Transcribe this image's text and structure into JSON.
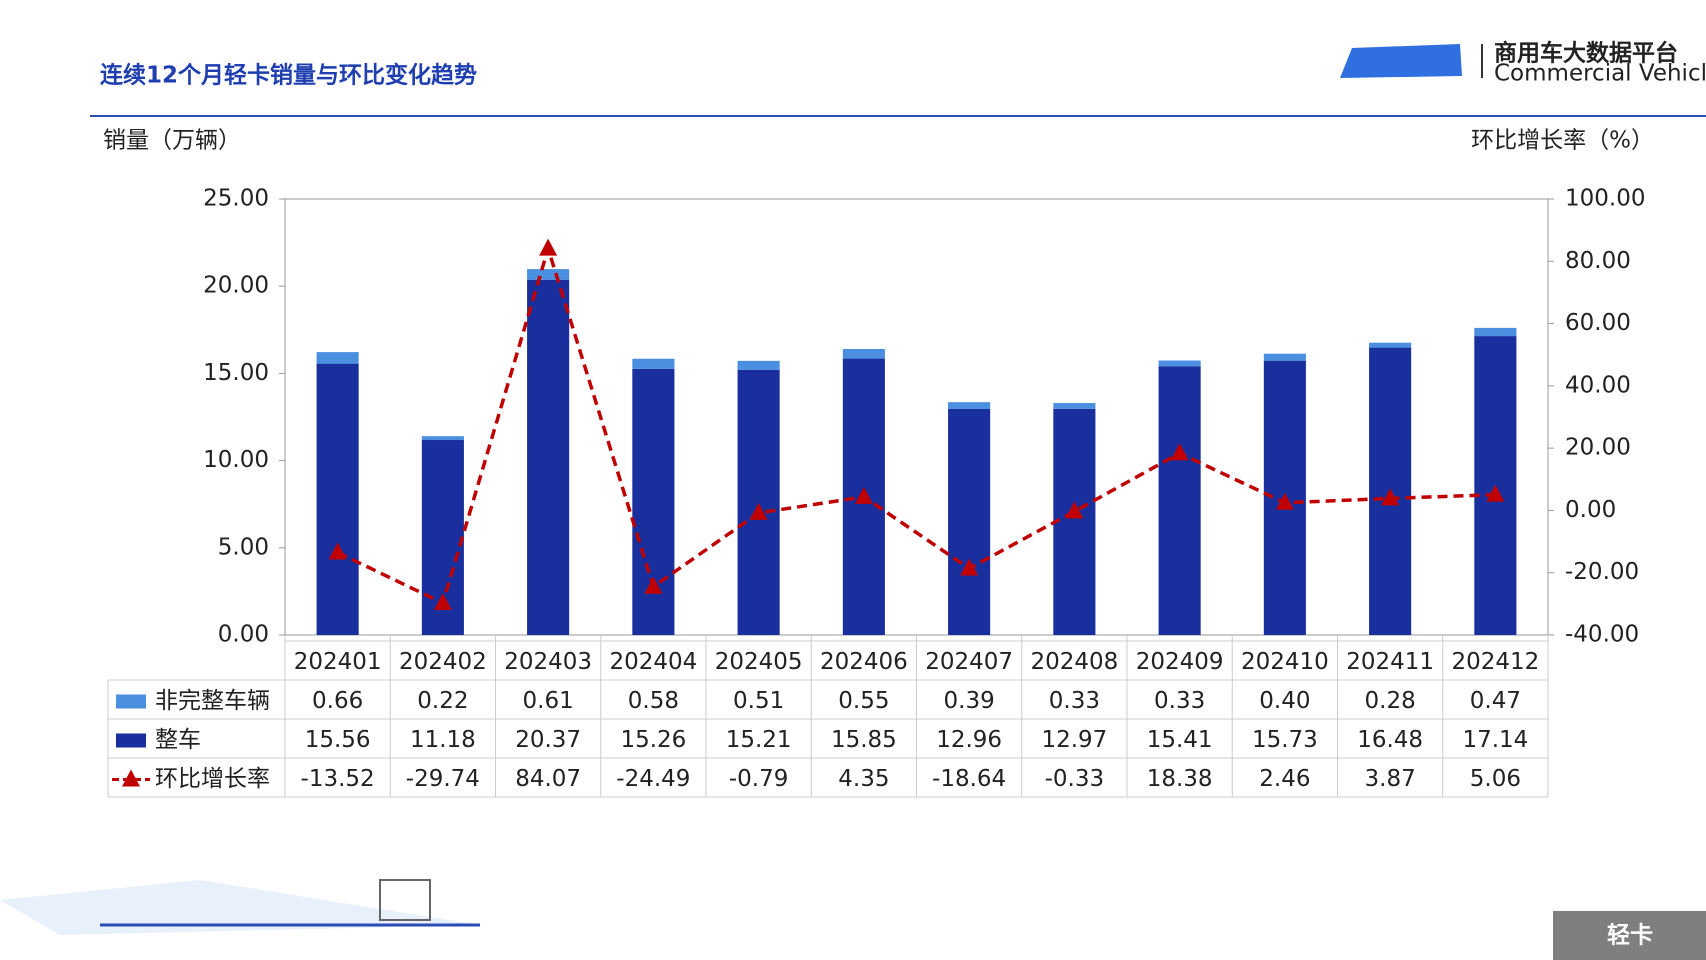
{
  "header": {
    "title": "连续12个月轻卡销量与环比变化趋势",
    "logo_name": "商用车大数据平台",
    "logo_subtitle": "Commercial Vehicle Big Data Platform"
  },
  "chart_data": {
    "type": "bar_line",
    "y_label": "销量（万辆）",
    "y2_label": "环比增长率（%）",
    "categories": [
      "202401",
      "202402",
      "202403",
      "202404",
      "202405",
      "202406",
      "202407",
      "202408",
      "202409",
      "202410",
      "202411",
      "202412"
    ],
    "series": [
      {
        "name": "非完整车辆",
        "type": "bar",
        "color": "#4a8fe0",
        "values": [
          0.66,
          0.22,
          0.61,
          0.58,
          0.51,
          0.55,
          0.39,
          0.33,
          0.33,
          0.4,
          0.28,
          0.47
        ],
        "value_labels": [
          "0.66",
          "0.22",
          "0.61",
          "0.58",
          "0.51",
          "0.55",
          "0.39",
          "0.33",
          "0.33",
          "0.40",
          "0.28",
          "0.47"
        ]
      },
      {
        "name": "整车",
        "type": "bar",
        "color": "#1a2f9e",
        "values": [
          15.56,
          11.18,
          20.37,
          15.26,
          15.21,
          15.85,
          12.96,
          12.97,
          15.41,
          15.73,
          16.48,
          17.14
        ]
      },
      {
        "name": "环比增长率",
        "type": "line",
        "axis": "y2",
        "color": "#c00000",
        "values": [
          -13.52,
          -29.74,
          84.07,
          -24.49,
          -0.79,
          4.35,
          -18.64,
          -0.33,
          18.38,
          2.46,
          3.87,
          5.06
        ]
      }
    ],
    "ylim": [
      0,
      25
    ],
    "yticks": [
      {
        "value": 0,
        "label": "0.00"
      },
      {
        "value": 5,
        "label": "5.00"
      },
      {
        "value": 10,
        "label": "10.00"
      },
      {
        "value": 15,
        "label": "15.00"
      },
      {
        "value": 20,
        "label": "20.00"
      },
      {
        "value": 25,
        "label": "25.00"
      }
    ],
    "y2lim": [
      -40,
      100
    ],
    "y2ticks": [
      {
        "value": -40,
        "label": "-40.00"
      },
      {
        "value": -20,
        "label": "-20.00"
      },
      {
        "value": 0,
        "label": "0.00"
      },
      {
        "value": 20,
        "label": "20.00"
      },
      {
        "value": 40,
        "label": "40.00"
      },
      {
        "value": 60,
        "label": "60.00"
      },
      {
        "value": 80,
        "label": "80.00"
      },
      {
        "value": 100,
        "label": "100.00"
      }
    ]
  },
  "footer": {
    "tag": "轻卡"
  }
}
